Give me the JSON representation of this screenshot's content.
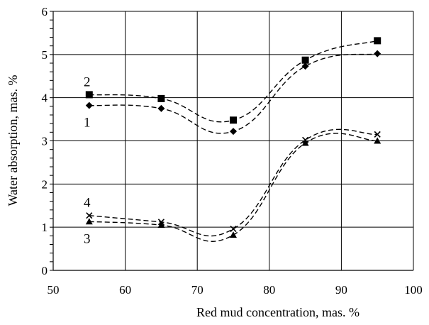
{
  "chart_data": {
    "type": "line",
    "xlabel": "Red mud concentration, mas. %",
    "ylabel": "Water absorption, mas. %",
    "xlim": [
      50,
      100
    ],
    "ylim": [
      0,
      6
    ],
    "x_ticks": [
      "50",
      "60",
      "70",
      "80",
      "90",
      "100"
    ],
    "y_ticks": [
      "0",
      "1",
      "2",
      "3",
      "4",
      "5",
      "6"
    ],
    "grid": true,
    "x": [
      55,
      65,
      75,
      85,
      95
    ],
    "series": [
      {
        "name": "1",
        "marker": "diamond",
        "values": [
          3.82,
          3.75,
          3.22,
          4.73,
          5.02
        ]
      },
      {
        "name": "2",
        "marker": "square",
        "values": [
          4.07,
          3.98,
          3.48,
          4.87,
          5.32
        ]
      },
      {
        "name": "3",
        "marker": "triangle",
        "values": [
          1.13,
          1.05,
          0.82,
          2.95,
          3.0
        ]
      },
      {
        "name": "4",
        "marker": "x",
        "values": [
          1.27,
          1.12,
          0.96,
          3.02,
          3.15
        ]
      }
    ]
  }
}
